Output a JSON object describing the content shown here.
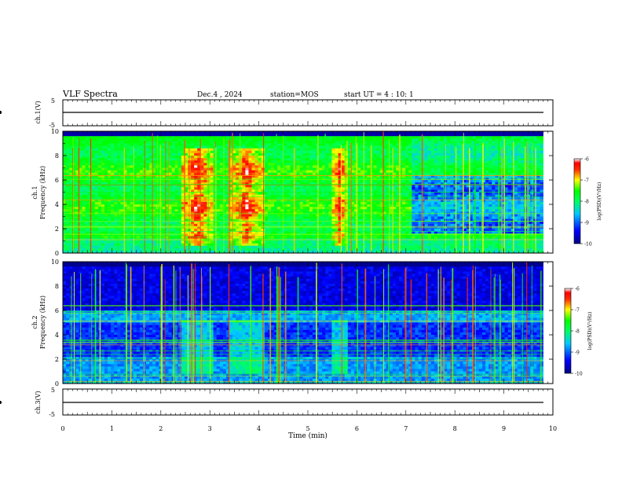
{
  "header": {
    "title": "VLF Spectra",
    "date": "Dec.4 , 2024",
    "station": "station=MOS",
    "start": "start UT = 4 : 10: 1"
  },
  "chart_data": [
    {
      "type": "line",
      "name": "ch1-voltage",
      "ylabel": "ch.1(V)",
      "ylim": [
        -5,
        5
      ],
      "yticks": [
        "5",
        "-5"
      ],
      "xlim": [
        0,
        10
      ],
      "baseline": 0
    },
    {
      "type": "heatmap",
      "name": "ch1-spectrogram",
      "ylabel": "ch.1\nFrequency (kHz)",
      "ylim": [
        0,
        10
      ],
      "yticks": [
        "0",
        "2",
        "4",
        "6",
        "8",
        "10"
      ],
      "xlim": [
        0,
        10
      ],
      "data_end_min": 9.8,
      "colorbar": {
        "label": "log(PSD)(V²/Hz)",
        "range": [
          -10,
          -6
        ],
        "ticks": [
          "-6",
          "-7",
          "-8",
          "-9",
          "-10"
        ]
      },
      "enhanced_bursts_min": [
        [
          2.4,
          3.1
        ],
        [
          3.4,
          4.1
        ],
        [
          5.5,
          5.8
        ]
      ],
      "quiet_after_min": 7.1
    },
    {
      "type": "heatmap",
      "name": "ch2-spectrogram",
      "ylabel": "ch.2\nFrequency (kHz)",
      "ylim": [
        0,
        10
      ],
      "yticks": [
        "0",
        "2",
        "4",
        "6",
        "8",
        "10"
      ],
      "xlim": [
        0,
        10
      ],
      "data_end_min": 9.8,
      "colorbar": {
        "label": "log(PSD)(V²/Hz)",
        "range": [
          -10,
          -6
        ],
        "ticks": [
          "-6",
          "-7",
          "-8",
          "-9",
          "-10"
        ]
      }
    },
    {
      "type": "line",
      "name": "ch3-voltage",
      "ylabel": "ch.3(V)",
      "ylim": [
        -5,
        5
      ],
      "yticks": [
        "5",
        "-5"
      ],
      "xlim": [
        0,
        10
      ],
      "xlabel": "Time (min)",
      "xticks": [
        "0",
        "1",
        "2",
        "3",
        "4",
        "5",
        "6",
        "7",
        "8",
        "9",
        "10"
      ],
      "baseline": 0
    }
  ],
  "colors": {
    "axis": "#000000",
    "colormap": [
      "#0000ff",
      "#00a0ff",
      "#00ffd0",
      "#00ff00",
      "#ffff00",
      "#ff8000",
      "#ff0000",
      "#ffffff"
    ]
  }
}
